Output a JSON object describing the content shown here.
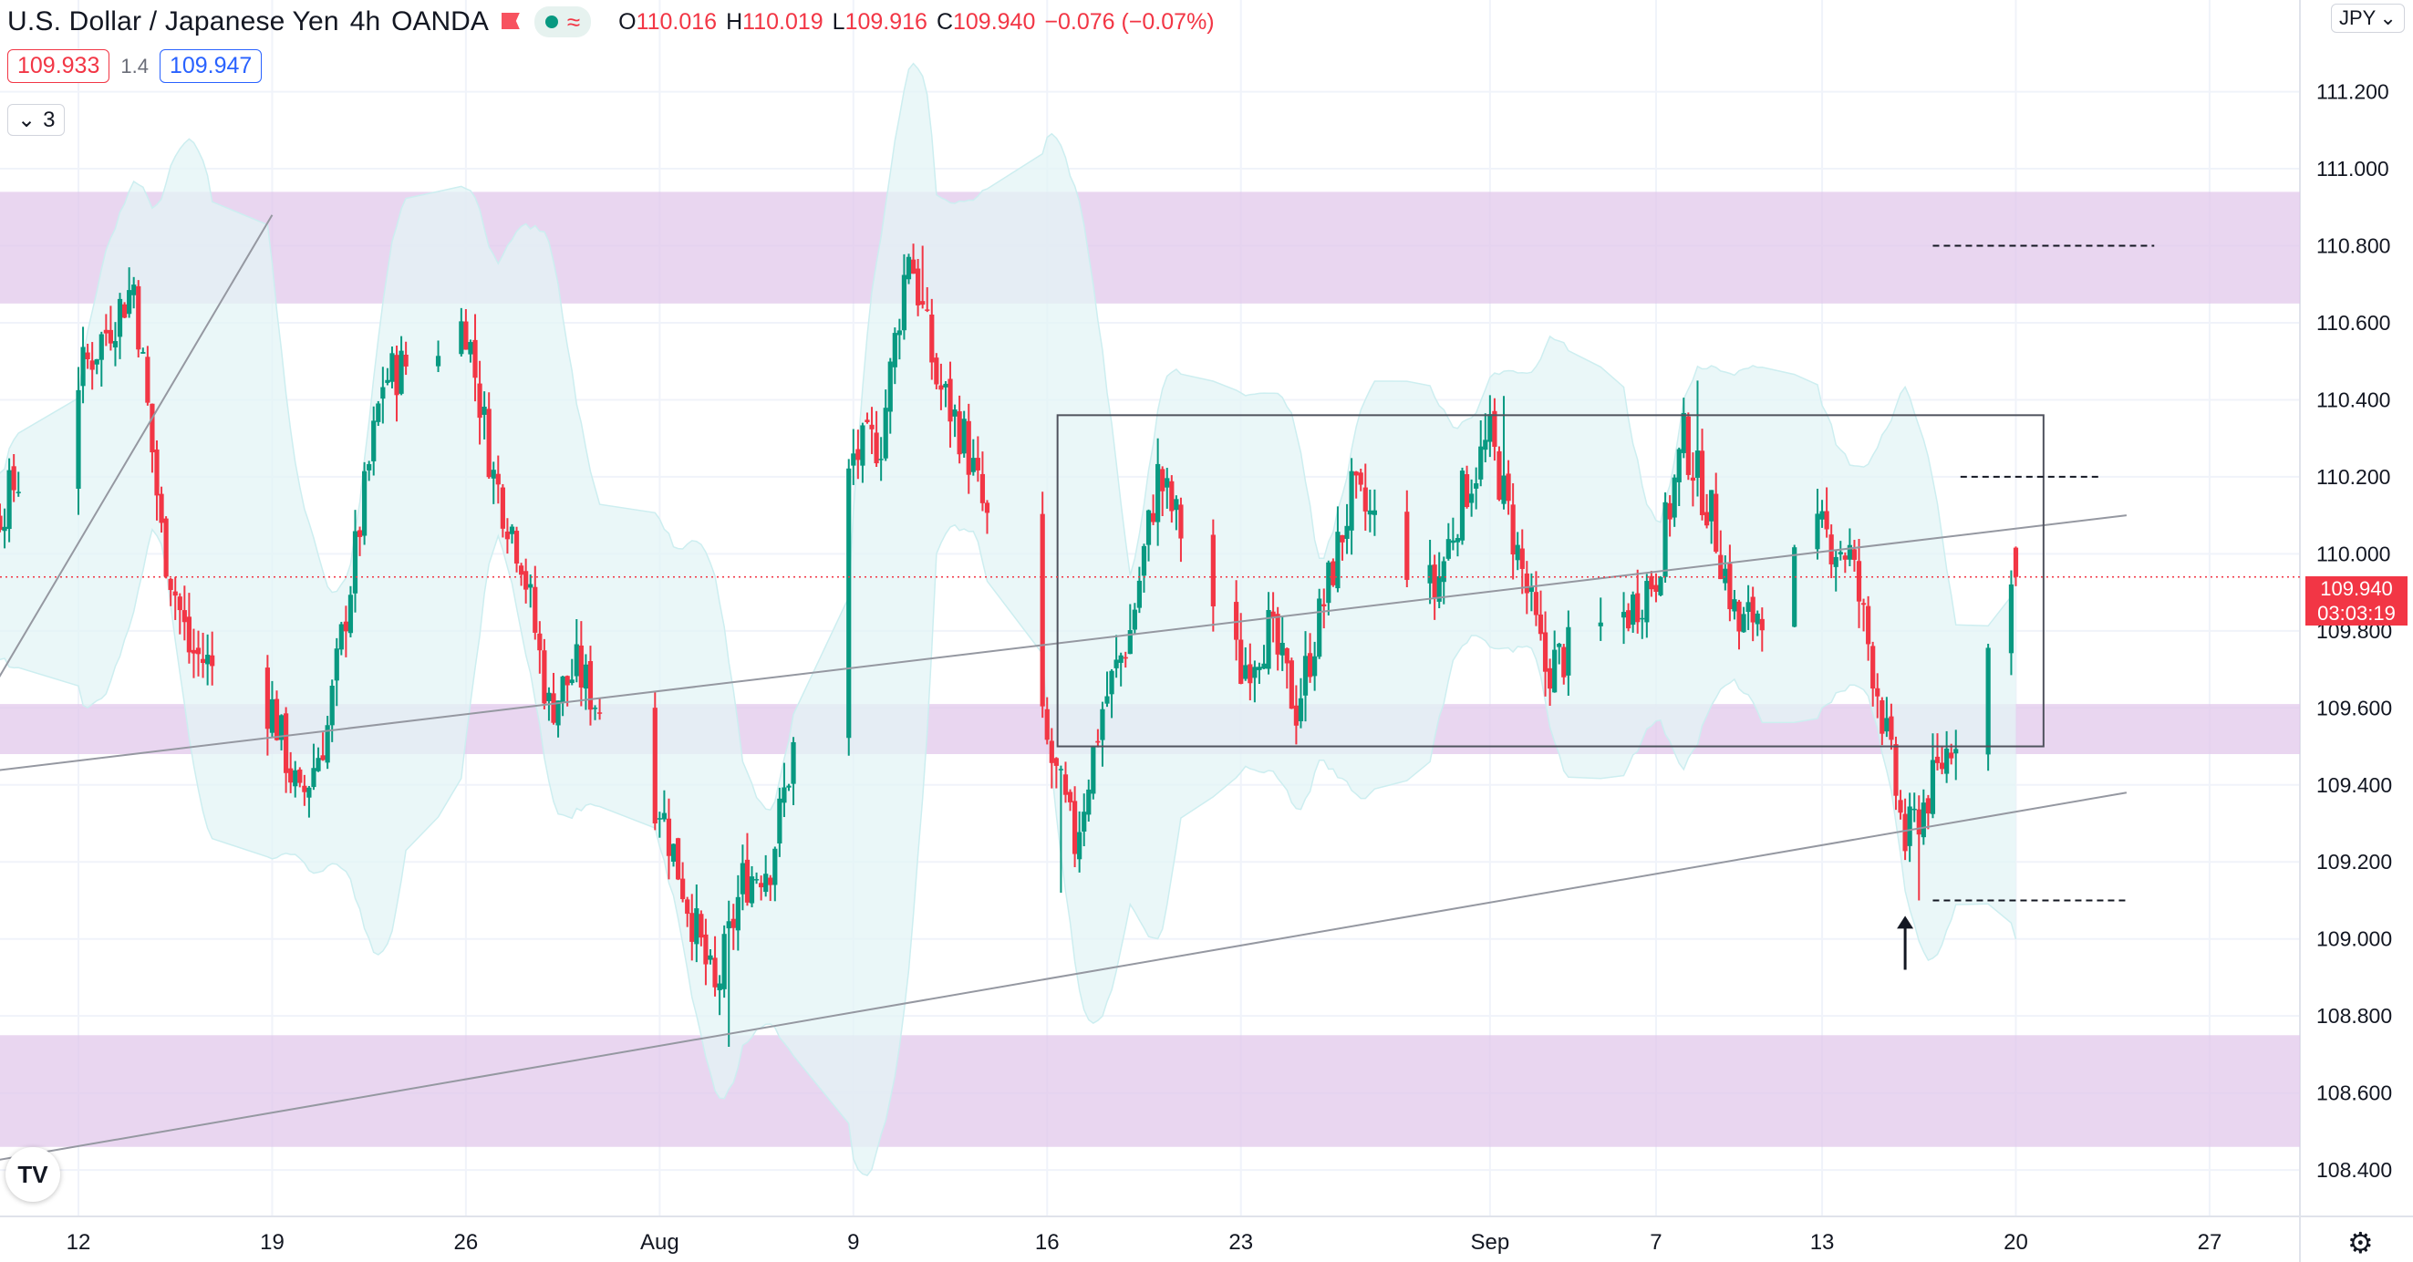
{
  "header": {
    "symbol": "U.S. Dollar / Japanese Yen",
    "interval": "4h",
    "broker": "OANDA",
    "open_label": "O",
    "open": "110.016",
    "high_label": "H",
    "high": "110.019",
    "low_label": "L",
    "low": "109.916",
    "close_label": "C",
    "close": "109.940",
    "change": "−0.076 (−0.07%)",
    "flag_icon": "flag-icon",
    "market_icon": "market-status-icon",
    "wave_icon": "wave-icon"
  },
  "quote": {
    "sell": "109.933",
    "spread": "1.4",
    "buy": "109.947"
  },
  "indicators": {
    "count": "3"
  },
  "currency_selector": "JPY",
  "last_price": {
    "price": "109.940",
    "countdown": "03:03:19"
  },
  "colors": {
    "up": "#089981",
    "down": "#f23645",
    "zone": "#e1c6ea",
    "band": "#e3f4f6",
    "grid": "#f0f3fa",
    "trendline": "#9598a1"
  },
  "chart_data": {
    "type": "candlestick",
    "ylim": [
      108.32,
      111.44
    ],
    "y_ticks": [
      "111.200",
      "111.000",
      "110.800",
      "110.600",
      "110.400",
      "110.200",
      "110.000",
      "109.800",
      "109.600",
      "109.400",
      "109.200",
      "109.000",
      "108.800",
      "108.600",
      "108.400"
    ],
    "x_ticks": [
      {
        "label": "12",
        "date": "2021-07-12"
      },
      {
        "label": "19",
        "date": "2021-07-19"
      },
      {
        "label": "26",
        "date": "2021-07-26"
      },
      {
        "label": "Aug",
        "date": "2021-08-02"
      },
      {
        "label": "9",
        "date": "2021-08-09"
      },
      {
        "label": "16",
        "date": "2021-08-16"
      },
      {
        "label": "23",
        "date": "2021-08-23"
      },
      {
        "label": "Sep",
        "date": "2021-09-01"
      },
      {
        "label": "7",
        "date": "2021-09-07"
      },
      {
        "label": "13",
        "date": "2021-09-13"
      },
      {
        "label": "20",
        "date": "2021-09-20"
      },
      {
        "label": "27",
        "date": "2021-09-27"
      }
    ],
    "anchors": [
      [
        "2021-07-07",
        109.85
      ],
      [
        "2021-07-14",
        110.7
      ],
      [
        "2021-07-15",
        110.05
      ],
      [
        "2021-07-16",
        109.75
      ],
      [
        "2021-07-19",
        109.6
      ],
      [
        "2021-07-20",
        109.35
      ],
      [
        "2021-07-21",
        109.55
      ],
      [
        "2021-07-23",
        110.45
      ],
      [
        "2021-07-26",
        110.6
      ],
      [
        "2021-07-27",
        110.2
      ],
      [
        "2021-07-28",
        110.0
      ],
      [
        "2021-07-29",
        109.6
      ],
      [
        "2021-07-30",
        109.7
      ],
      [
        "2021-08-02",
        109.35
      ],
      [
        "2021-08-03",
        109.1
      ],
      [
        "2021-08-04",
        108.85
      ],
      [
        "2021-08-05",
        109.15
      ],
      [
        "2021-08-06",
        109.2
      ],
      [
        "2021-08-09",
        110.25
      ],
      [
        "2021-08-10",
        110.3
      ],
      [
        "2021-08-11",
        110.8
      ],
      [
        "2021-08-12",
        110.45
      ],
      [
        "2021-08-13",
        110.3
      ],
      [
        "2021-08-16",
        109.5
      ],
      [
        "2021-08-17",
        109.25
      ],
      [
        "2021-08-18",
        109.6
      ],
      [
        "2021-08-19",
        109.8
      ],
      [
        "2021-08-20",
        110.2
      ],
      [
        "2021-08-23",
        109.7
      ],
      [
        "2021-08-24",
        109.8
      ],
      [
        "2021-08-25",
        109.6
      ],
      [
        "2021-08-27",
        110.15
      ],
      [
        "2021-08-30",
        109.9
      ],
      [
        "2021-08-31",
        110.15
      ],
      [
        "2021-09-01",
        110.3
      ],
      [
        "2021-09-02",
        110.0
      ],
      [
        "2021-09-03",
        109.7
      ],
      [
        "2021-09-06",
        109.85
      ],
      [
        "2021-09-07",
        109.95
      ],
      [
        "2021-09-08",
        110.3
      ],
      [
        "2021-09-09",
        110.1
      ],
      [
        "2021-09-10",
        109.8
      ],
      [
        "2021-09-13",
        110.05
      ],
      [
        "2021-09-14",
        110.0
      ],
      [
        "2021-09-15",
        109.65
      ],
      [
        "2021-09-16",
        109.25
      ],
      [
        "2021-09-17",
        109.4
      ],
      [
        "2021-09-19",
        109.75
      ],
      [
        "2021-09-20",
        109.94
      ]
    ],
    "key_candles": [
      {
        "date": "2021-08-04",
        "low": 108.72
      },
      {
        "date": "2021-08-11",
        "high": 110.8
      },
      {
        "date": "2021-08-16",
        "low": 109.12
      },
      {
        "date": "2021-09-01",
        "high": 110.41
      },
      {
        "date": "2021-09-08",
        "high": 110.45
      },
      {
        "date": "2021-09-16",
        "low": 109.1
      },
      {
        "date": "2021-09-20",
        "open": 110.016,
        "high": 110.019,
        "low": 109.916,
        "close": 109.94
      }
    ],
    "zones": [
      {
        "from": 110.65,
        "to": 110.94
      },
      {
        "from": 109.48,
        "to": 109.61
      },
      {
        "from": 108.46,
        "to": 108.75
      }
    ],
    "range_box": {
      "from_date": "2021-08-20",
      "to_date": "2021-09-21",
      "top": 110.36,
      "bottom": 109.5
    },
    "trendlines": [
      {
        "from": [
          "2021-07-07",
          109.42
        ],
        "to": [
          "2021-09-24",
          110.1
        ]
      },
      {
        "from": [
          "2021-07-07",
          108.4
        ],
        "to": [
          "2021-09-24",
          109.38
        ]
      },
      {
        "from": [
          "2021-07-07",
          109.42
        ],
        "to": [
          "2021-07-19",
          110.88
        ]
      }
    ],
    "levels": [
      {
        "price": 110.8,
        "from_date": "2021-09-17",
        "to_date": "2021-09-25"
      },
      {
        "price": 110.2,
        "from_date": "2021-09-18",
        "to_date": "2021-09-23"
      },
      {
        "price": 109.1,
        "from_date": "2021-09-17",
        "to_date": "2021-09-24"
      }
    ],
    "arrow": {
      "date": "2021-09-16",
      "price_from": 108.92,
      "price_to": 109.06
    }
  }
}
